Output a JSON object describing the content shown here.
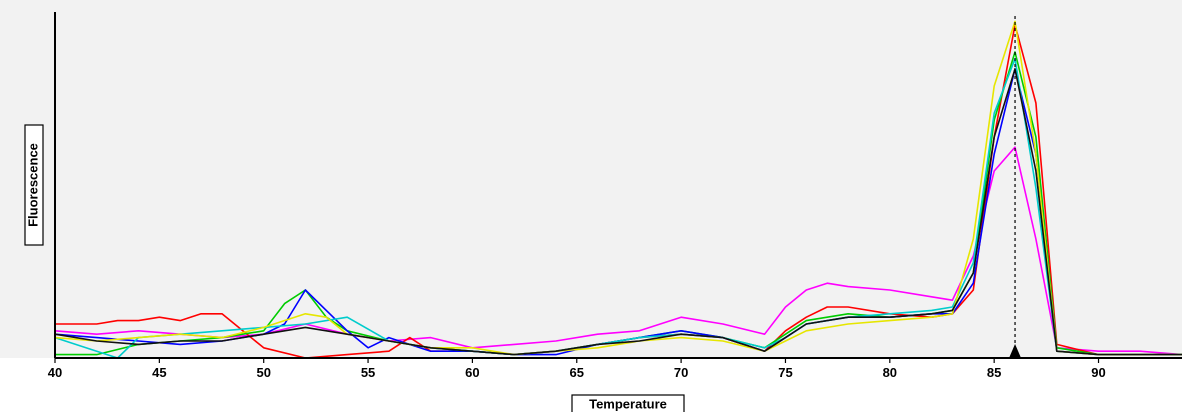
{
  "chart_data": {
    "type": "line",
    "title": "",
    "xlabel": "Temperature",
    "ylabel": "Fluorescence",
    "xlim": [
      40,
      94
    ],
    "ylim": [
      0,
      1
    ],
    "x_ticks": [
      40,
      45,
      50,
      55,
      60,
      65,
      70,
      75,
      80,
      85,
      90
    ],
    "marker_x": 86,
    "grid": false,
    "legend": "none",
    "colors": {
      "background": "#f2f2f2",
      "page": "#ffffff",
      "axis": "#000000",
      "marker": "#000000"
    },
    "series": [
      {
        "color": "#ff00ff",
        "x": [
          40,
          42,
          44,
          46,
          48,
          50,
          52,
          54,
          56,
          58,
          60,
          62,
          64,
          66,
          68,
          70,
          72,
          74,
          75,
          76,
          77,
          78,
          80,
          82,
          83,
          84,
          85,
          86,
          87,
          88,
          90,
          92,
          94
        ],
        "y": [
          0.08,
          0.07,
          0.08,
          0.07,
          0.06,
          0.07,
          0.1,
          0.07,
          0.05,
          0.06,
          0.03,
          0.04,
          0.05,
          0.07,
          0.08,
          0.12,
          0.1,
          0.07,
          0.15,
          0.2,
          0.22,
          0.21,
          0.2,
          0.18,
          0.17,
          0.3,
          0.55,
          0.62,
          0.35,
          0.03,
          0.02,
          0.02,
          0.01
        ]
      },
      {
        "color": "#ff0000",
        "x": [
          40,
          42,
          43,
          44,
          45,
          46,
          47,
          48,
          49,
          50,
          52,
          54,
          56,
          57,
          58,
          60,
          62,
          64,
          66,
          68,
          70,
          72,
          74,
          75,
          76,
          77,
          78,
          80,
          82,
          83,
          84,
          85,
          86,
          87,
          88,
          90,
          92,
          94
        ],
        "y": [
          0.1,
          0.1,
          0.11,
          0.11,
          0.12,
          0.11,
          0.13,
          0.13,
          0.08,
          0.03,
          0.0,
          0.01,
          0.02,
          0.06,
          0.02,
          0.02,
          0.01,
          0.02,
          0.04,
          0.06,
          0.07,
          0.06,
          0.02,
          0.08,
          0.12,
          0.15,
          0.15,
          0.13,
          0.12,
          0.13,
          0.2,
          0.65,
          0.98,
          0.75,
          0.04,
          0.01,
          0.01,
          0.01
        ]
      },
      {
        "color": "#00cc00",
        "x": [
          40,
          42,
          44,
          46,
          48,
          50,
          51,
          52,
          53,
          54,
          56,
          58,
          60,
          62,
          64,
          66,
          68,
          70,
          72,
          74,
          75,
          76,
          78,
          80,
          82,
          83,
          84,
          85,
          86,
          87,
          88,
          90,
          92,
          94
        ],
        "y": [
          0.01,
          0.01,
          0.04,
          0.05,
          0.06,
          0.08,
          0.16,
          0.2,
          0.12,
          0.08,
          0.05,
          0.03,
          0.02,
          0.01,
          0.02,
          0.04,
          0.06,
          0.08,
          0.06,
          0.03,
          0.07,
          0.11,
          0.13,
          0.12,
          0.13,
          0.14,
          0.25,
          0.7,
          0.9,
          0.65,
          0.03,
          0.01,
          0.01,
          0.01
        ]
      },
      {
        "color": "#0000ff",
        "x": [
          40,
          42,
          44,
          46,
          48,
          50,
          51,
          52,
          53,
          54,
          55,
          56,
          58,
          60,
          62,
          64,
          66,
          68,
          70,
          72,
          74,
          75,
          76,
          78,
          80,
          82,
          83,
          84,
          85,
          86,
          87,
          88,
          90,
          92,
          94
        ],
        "y": [
          0.07,
          0.06,
          0.05,
          0.04,
          0.05,
          0.07,
          0.1,
          0.2,
          0.14,
          0.08,
          0.03,
          0.06,
          0.02,
          0.02,
          0.01,
          0.01,
          0.04,
          0.06,
          0.08,
          0.06,
          0.02,
          0.06,
          0.1,
          0.12,
          0.12,
          0.13,
          0.13,
          0.22,
          0.6,
          0.85,
          0.6,
          0.02,
          0.01,
          0.01,
          0.01
        ]
      },
      {
        "color": "#00cccc",
        "x": [
          40,
          42,
          43,
          44,
          46,
          48,
          50,
          52,
          54,
          56,
          58,
          60,
          62,
          64,
          66,
          68,
          70,
          72,
          74,
          75,
          76,
          78,
          80,
          82,
          83,
          84,
          85,
          86,
          87,
          88,
          90,
          92,
          94
        ],
        "y": [
          0.06,
          0.02,
          0.0,
          0.06,
          0.07,
          0.08,
          0.09,
          0.1,
          0.12,
          0.05,
          0.03,
          0.02,
          0.01,
          0.02,
          0.04,
          0.06,
          0.07,
          0.06,
          0.03,
          0.06,
          0.1,
          0.12,
          0.13,
          0.14,
          0.15,
          0.28,
          0.72,
          0.88,
          0.5,
          0.02,
          0.01,
          0.01,
          0.01
        ]
      },
      {
        "color": "#e6e600",
        "x": [
          40,
          42,
          44,
          46,
          48,
          50,
          52,
          53,
          54,
          56,
          58,
          60,
          62,
          64,
          66,
          68,
          70,
          72,
          74,
          75,
          76,
          78,
          80,
          82,
          83,
          84,
          85,
          86,
          87,
          88,
          90,
          92,
          94
        ],
        "y": [
          0.06,
          0.05,
          0.06,
          0.07,
          0.06,
          0.09,
          0.13,
          0.12,
          0.07,
          0.05,
          0.03,
          0.03,
          0.01,
          0.02,
          0.03,
          0.05,
          0.06,
          0.05,
          0.02,
          0.05,
          0.08,
          0.1,
          0.11,
          0.12,
          0.13,
          0.35,
          0.8,
          0.99,
          0.6,
          0.02,
          0.01,
          0.01,
          0.01
        ]
      },
      {
        "color": "#111111",
        "x": [
          40,
          42,
          44,
          46,
          48,
          50,
          52,
          54,
          56,
          58,
          60,
          62,
          64,
          66,
          68,
          70,
          72,
          74,
          75,
          76,
          78,
          80,
          82,
          83,
          84,
          85,
          86,
          87,
          88,
          90,
          92,
          94
        ],
        "y": [
          0.07,
          0.05,
          0.04,
          0.05,
          0.05,
          0.07,
          0.09,
          0.07,
          0.05,
          0.03,
          0.02,
          0.01,
          0.02,
          0.04,
          0.05,
          0.07,
          0.06,
          0.02,
          0.06,
          0.1,
          0.12,
          0.12,
          0.13,
          0.14,
          0.25,
          0.65,
          0.85,
          0.55,
          0.02,
          0.01,
          0.01,
          0.01
        ]
      }
    ]
  }
}
